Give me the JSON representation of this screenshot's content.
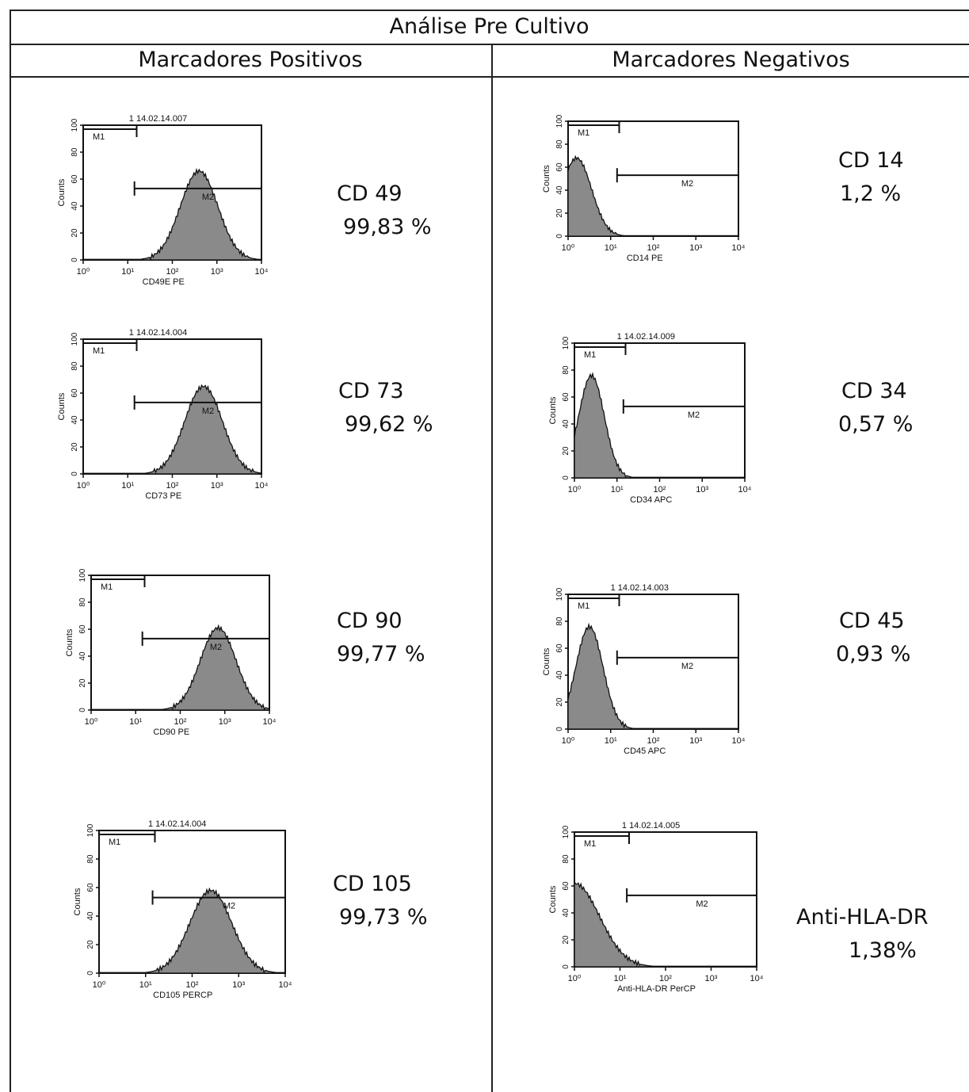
{
  "table": {
    "title": "Análise Pre Cultivo",
    "col_positive": "Marcadores Positivos",
    "col_negative": "Marcadores Negativos"
  },
  "chart_data": [
    {
      "type": "area",
      "marker": "CD 49",
      "percent": "99,83 %",
      "sample": "1 14.02.14.007",
      "xlabel": "CD49E PE",
      "ylabel": "Counts",
      "x_scale": "log",
      "xlim": [
        1,
        10000
      ],
      "xticks": [
        "10⁰",
        "10¹",
        "10²",
        "10³",
        "10⁴"
      ],
      "ylim": [
        0,
        100
      ],
      "yticks": [
        "0",
        "20",
        "40",
        "60",
        "80",
        "100"
      ],
      "gates": [
        "M1",
        "M2"
      ],
      "peak_log": 2.6,
      "peak_count": 66,
      "spread": 0.42
    },
    {
      "type": "area",
      "marker": "CD 73",
      "percent": "99,62 %",
      "sample": "1 14.02.14.004",
      "xlabel": "CD73 PE",
      "ylabel": "Counts",
      "x_scale": "log",
      "xlim": [
        1,
        10000
      ],
      "xticks": [
        "10⁰",
        "10¹",
        "10²",
        "10³",
        "10⁴"
      ],
      "ylim": [
        0,
        100
      ],
      "yticks": [
        "0",
        "20",
        "40",
        "60",
        "80",
        "100"
      ],
      "gates": [
        "M1",
        "M2"
      ],
      "peak_log": 2.7,
      "peak_count": 65,
      "spread": 0.42
    },
    {
      "type": "area",
      "marker": "CD 90",
      "percent": "99,77 %",
      "sample": "",
      "xlabel": "CD90 PE",
      "ylabel": "Counts",
      "x_scale": "log",
      "xlim": [
        1,
        10000
      ],
      "xticks": [
        "10⁰",
        "10¹",
        "10²",
        "10³",
        "10⁴"
      ],
      "ylim": [
        0,
        100
      ],
      "yticks": [
        "0",
        "20",
        "40",
        "60",
        "80",
        "100"
      ],
      "gates": [
        "M1",
        "M2"
      ],
      "peak_log": 2.85,
      "peak_count": 61,
      "spread": 0.4
    },
    {
      "type": "area",
      "marker": "CD 105",
      "percent": "99,73 %",
      "sample": "1 14.02.14.004",
      "xlabel": "CD105 PERCP",
      "ylabel": "Counts",
      "x_scale": "log",
      "xlim": [
        1,
        10000
      ],
      "xticks": [
        "10⁰",
        "10¹",
        "10²",
        "10³",
        "10⁴"
      ],
      "ylim": [
        0,
        100
      ],
      "yticks": [
        "0",
        "20",
        "40",
        "60",
        "80",
        "100"
      ],
      "gates": [
        "M1",
        "M2"
      ],
      "peak_log": 2.4,
      "peak_count": 58,
      "spread": 0.45
    },
    {
      "type": "area",
      "marker": "CD 14",
      "percent": "1,2 %",
      "sample": "",
      "xlabel": "CD14 PE",
      "ylabel": "Counts",
      "x_scale": "log",
      "xlim": [
        1,
        10000
      ],
      "xticks": [
        "10⁰",
        "10¹",
        "10²",
        "10³",
        "10⁴"
      ],
      "ylim": [
        0,
        100
      ],
      "yticks": [
        "0",
        "20",
        "40",
        "60",
        "80",
        "100"
      ],
      "gates": [
        "M1",
        "M2"
      ],
      "peak_log": 0.2,
      "peak_count": 68,
      "spread": 0.35
    },
    {
      "type": "area",
      "marker": "CD 34",
      "percent": "0,57 %",
      "sample": "1 14.02.14.009",
      "xlabel": "CD34 APC",
      "ylabel": "Counts",
      "x_scale": "log",
      "xlim": [
        1,
        10000
      ],
      "xticks": [
        "10⁰",
        "10¹",
        "10²",
        "10³",
        "10⁴"
      ],
      "ylim": [
        0,
        100
      ],
      "yticks": [
        "0",
        "20",
        "40",
        "60",
        "80",
        "100"
      ],
      "gates": [
        "M1",
        "M2"
      ],
      "peak_log": 0.4,
      "peak_count": 76,
      "spread": 0.3
    },
    {
      "type": "area",
      "marker": "CD 45",
      "percent": "0,93 %",
      "sample": "1 14.02.14.003",
      "xlabel": "CD45 APC",
      "ylabel": "Counts",
      "x_scale": "log",
      "xlim": [
        1,
        10000
      ],
      "xticks": [
        "10⁰",
        "10¹",
        "10²",
        "10³",
        "10⁴"
      ],
      "ylim": [
        0,
        100
      ],
      "yticks": [
        "0",
        "20",
        "40",
        "60",
        "80",
        "100"
      ],
      "gates": [
        "M1",
        "M2"
      ],
      "peak_log": 0.5,
      "peak_count": 76,
      "spread": 0.32
    },
    {
      "type": "area",
      "marker": "Anti-HLA-DR",
      "percent": "1,38%",
      "sample": "1 14.02.14.005",
      "xlabel": "Anti-HLA-DR PerCP",
      "ylabel": "Counts",
      "x_scale": "log",
      "xlim": [
        1,
        10000
      ],
      "xticks": [
        "10⁰",
        "10¹",
        "10²",
        "10³",
        "10⁴"
      ],
      "ylim": [
        0,
        100
      ],
      "yticks": [
        "0",
        "20",
        "40",
        "60",
        "80",
        "100"
      ],
      "gates": [
        "M1",
        "M2"
      ],
      "peak_log": 0.0,
      "peak_count": 62,
      "spread": 0.55
    }
  ]
}
